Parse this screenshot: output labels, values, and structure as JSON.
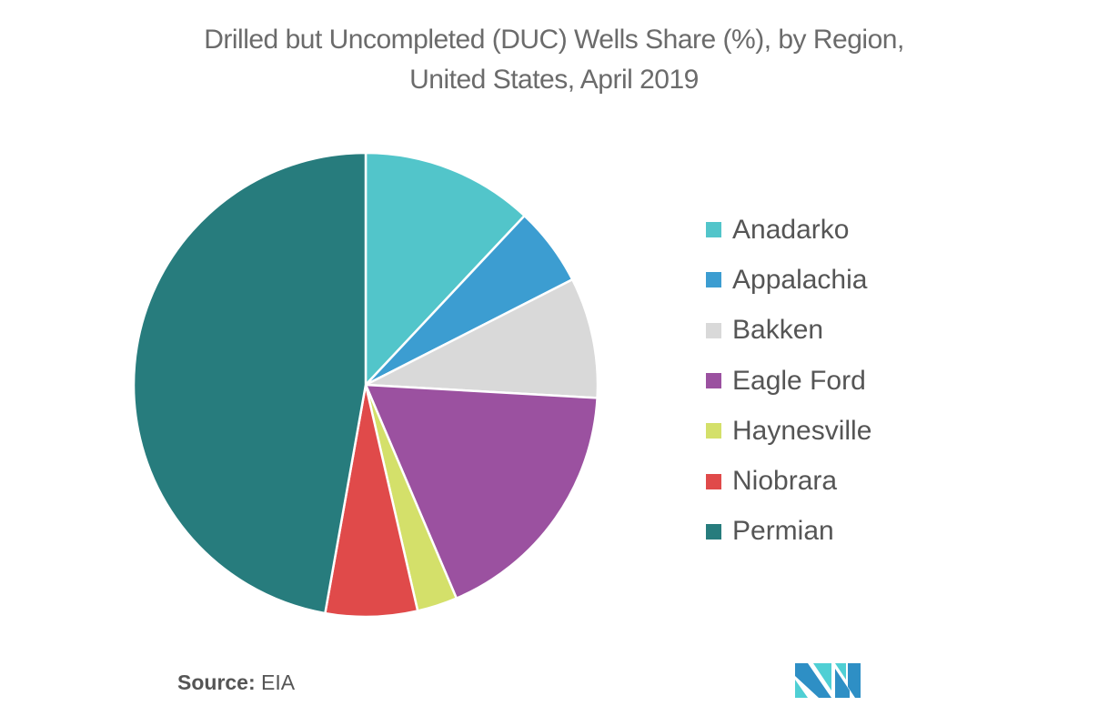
{
  "chart_data": {
    "type": "pie",
    "title": "Drilled but Uncompleted (DUC) Wells Share (%), by Region, United States, April 2019",
    "title_lines": [
      "Drilled but Uncompleted (DUC) Wells Share (%), by Region,",
      "United States, April 2019"
    ],
    "legend_position": "right",
    "start_angle": "top, clockwise",
    "slices": [
      {
        "label": "Anadarko",
        "value": 12.0,
        "color": "#52c5ca"
      },
      {
        "label": "Appalachia",
        "value": 5.5,
        "color": "#3c9dd1"
      },
      {
        "label": "Bakken",
        "value": 8.4,
        "color": "#d9d9d9"
      },
      {
        "label": "Eagle Ford",
        "value": 17.7,
        "color": "#9b51a0"
      },
      {
        "label": "Haynesville",
        "value": 2.8,
        "color": "#d4e06a"
      },
      {
        "label": "Niobrara",
        "value": 6.4,
        "color": "#e04a4a"
      },
      {
        "label": "Permian",
        "value": 47.2,
        "color": "#277c7d"
      }
    ]
  },
  "source": {
    "label": "Source:",
    "value": "EIA"
  },
  "logo": {
    "name": "mordor-intelligence-logo",
    "colors": [
      "#2e8fc5",
      "#4fcfd4"
    ]
  }
}
